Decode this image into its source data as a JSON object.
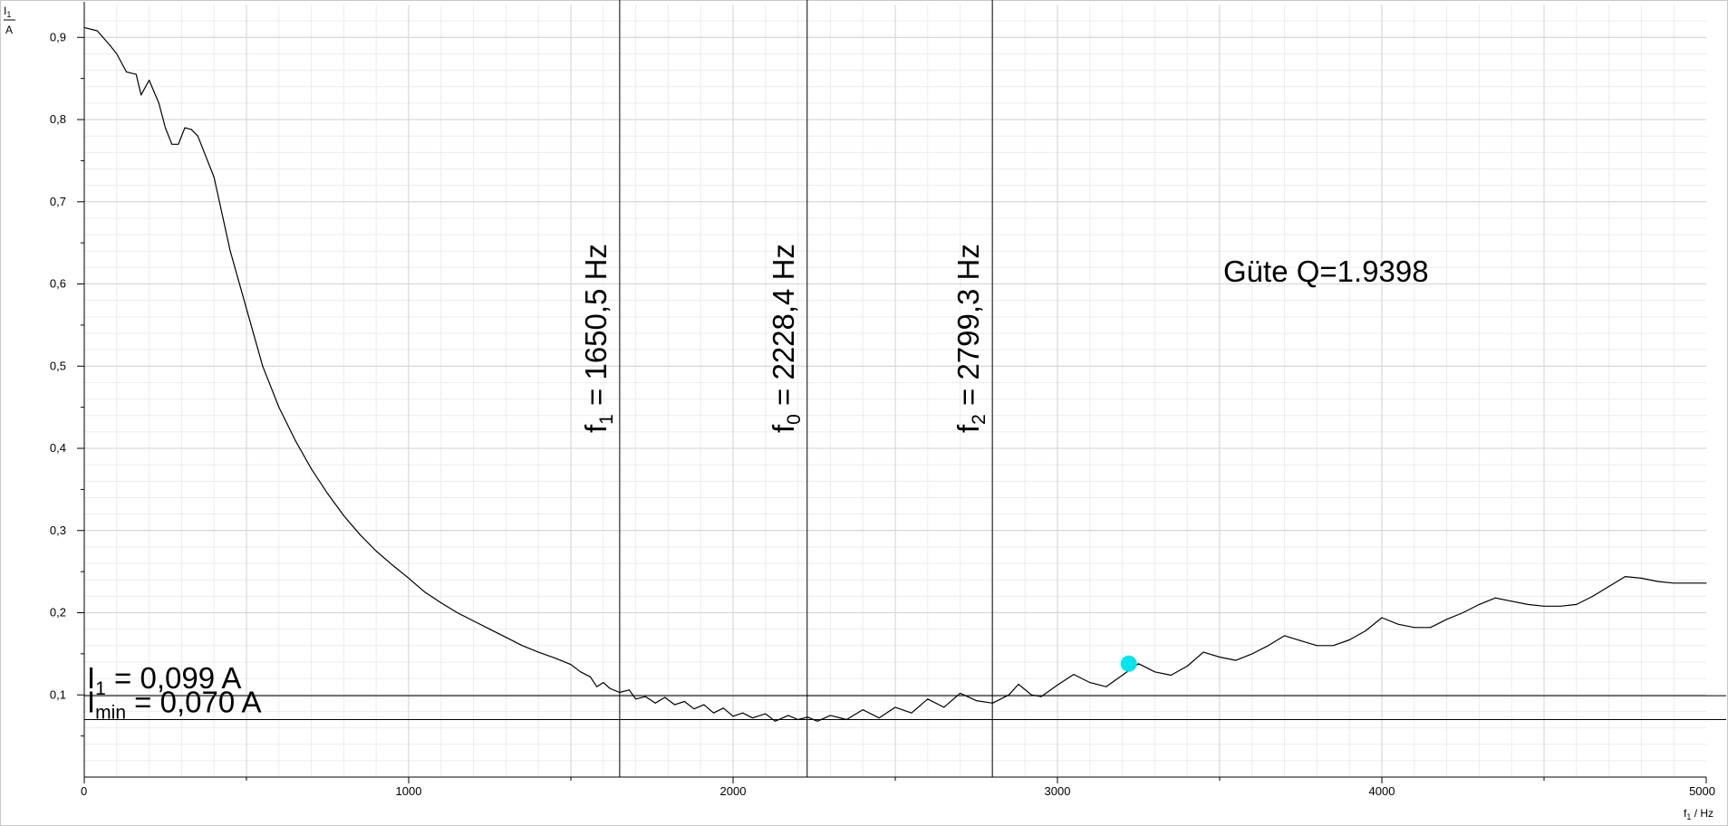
{
  "chart_data": {
    "type": "line",
    "title": "",
    "xlabel": "f",
    "xlabel_sub": "1",
    "xlabel_unit": " / Hz",
    "ylabel": "I",
    "ylabel_sub": "1",
    "ylabel_unit": "A",
    "xlim": [
      0,
      5000
    ],
    "ylim": [
      0.0,
      0.94
    ],
    "grid": true,
    "x_ticks": [
      0,
      1000,
      2000,
      3000,
      4000,
      5000
    ],
    "x_tick_labels": [
      "0",
      "1000",
      "2000",
      "3000",
      "4000",
      "5000"
    ],
    "y_ticks": [
      0.1,
      0.2,
      0.3,
      0.4,
      0.5,
      0.6,
      0.7,
      0.8,
      0.9
    ],
    "y_tick_labels": [
      "0,1",
      "0,2",
      "0,3",
      "0,4",
      "0,5",
      "0,6",
      "0,7",
      "0,8",
      "0,9"
    ],
    "series": [
      {
        "color": "#000000",
        "points": [
          [
            0,
            0.912
          ],
          [
            40,
            0.908
          ],
          [
            80,
            0.89
          ],
          [
            100,
            0.88
          ],
          [
            130,
            0.858
          ],
          [
            160,
            0.855
          ],
          [
            175,
            0.83
          ],
          [
            200,
            0.848
          ],
          [
            230,
            0.82
          ],
          [
            250,
            0.79
          ],
          [
            270,
            0.77
          ],
          [
            290,
            0.77
          ],
          [
            310,
            0.79
          ],
          [
            330,
            0.788
          ],
          [
            350,
            0.78
          ],
          [
            400,
            0.73
          ],
          [
            450,
            0.64
          ],
          [
            500,
            0.57
          ],
          [
            550,
            0.5
          ],
          [
            600,
            0.45
          ],
          [
            650,
            0.41
          ],
          [
            700,
            0.375
          ],
          [
            750,
            0.345
          ],
          [
            800,
            0.318
          ],
          [
            850,
            0.295
          ],
          [
            900,
            0.275
          ],
          [
            950,
            0.258
          ],
          [
            1000,
            0.242
          ],
          [
            1050,
            0.225
          ],
          [
            1100,
            0.212
          ],
          [
            1150,
            0.2
          ],
          [
            1200,
            0.19
          ],
          [
            1250,
            0.18
          ],
          [
            1300,
            0.17
          ],
          [
            1350,
            0.16
          ],
          [
            1400,
            0.152
          ],
          [
            1450,
            0.145
          ],
          [
            1500,
            0.137
          ],
          [
            1530,
            0.128
          ],
          [
            1560,
            0.122
          ],
          [
            1580,
            0.11
          ],
          [
            1600,
            0.115
          ],
          [
            1620,
            0.108
          ],
          [
            1650,
            0.103
          ],
          [
            1680,
            0.106
          ],
          [
            1700,
            0.095
          ],
          [
            1730,
            0.098
          ],
          [
            1760,
            0.09
          ],
          [
            1790,
            0.097
          ],
          [
            1820,
            0.088
          ],
          [
            1850,
            0.092
          ],
          [
            1880,
            0.083
          ],
          [
            1910,
            0.088
          ],
          [
            1940,
            0.078
          ],
          [
            1970,
            0.084
          ],
          [
            2000,
            0.074
          ],
          [
            2030,
            0.078
          ],
          [
            2060,
            0.072
          ],
          [
            2100,
            0.077
          ],
          [
            2130,
            0.068
          ],
          [
            2170,
            0.075
          ],
          [
            2200,
            0.07
          ],
          [
            2230,
            0.073
          ],
          [
            2260,
            0.068
          ],
          [
            2300,
            0.075
          ],
          [
            2350,
            0.07
          ],
          [
            2400,
            0.082
          ],
          [
            2450,
            0.072
          ],
          [
            2500,
            0.085
          ],
          [
            2550,
            0.078
          ],
          [
            2600,
            0.095
          ],
          [
            2650,
            0.085
          ],
          [
            2700,
            0.102
          ],
          [
            2750,
            0.093
          ],
          [
            2800,
            0.09
          ],
          [
            2850,
            0.1
          ],
          [
            2880,
            0.113
          ],
          [
            2920,
            0.1
          ],
          [
            2950,
            0.098
          ],
          [
            3000,
            0.112
          ],
          [
            3050,
            0.125
          ],
          [
            3100,
            0.115
          ],
          [
            3150,
            0.11
          ],
          [
            3200,
            0.124
          ],
          [
            3250,
            0.138
          ],
          [
            3300,
            0.128
          ],
          [
            3350,
            0.124
          ],
          [
            3400,
            0.135
          ],
          [
            3450,
            0.152
          ],
          [
            3500,
            0.146
          ],
          [
            3550,
            0.142
          ],
          [
            3600,
            0.15
          ],
          [
            3650,
            0.16
          ],
          [
            3700,
            0.172
          ],
          [
            3750,
            0.166
          ],
          [
            3800,
            0.16
          ],
          [
            3850,
            0.16
          ],
          [
            3900,
            0.167
          ],
          [
            3950,
            0.178
          ],
          [
            4000,
            0.194
          ],
          [
            4050,
            0.186
          ],
          [
            4100,
            0.182
          ],
          [
            4150,
            0.182
          ],
          [
            4200,
            0.192
          ],
          [
            4250,
            0.2
          ],
          [
            4300,
            0.21
          ],
          [
            4350,
            0.218
          ],
          [
            4400,
            0.214
          ],
          [
            4450,
            0.21
          ],
          [
            4500,
            0.208
          ],
          [
            4550,
            0.208
          ],
          [
            4600,
            0.21
          ],
          [
            4650,
            0.22
          ],
          [
            4700,
            0.232
          ],
          [
            4750,
            0.244
          ],
          [
            4800,
            0.242
          ],
          [
            4850,
            0.238
          ],
          [
            4900,
            0.236
          ],
          [
            4950,
            0.236
          ],
          [
            5000,
            0.236
          ]
        ]
      }
    ],
    "marker": {
      "x": 3220,
      "y": 0.138,
      "color": "#00e5ee"
    },
    "vlines": [
      {
        "x": 1650.5,
        "name": "f",
        "sub": "1",
        "value_text": " =  1650,5 Hz"
      },
      {
        "x": 2228.4,
        "name": "f",
        "sub": "0",
        "value_text": " =  2228,4 Hz"
      },
      {
        "x": 2799.3,
        "name": "f",
        "sub": "2",
        "value_text": " =  2799,3 Hz"
      }
    ],
    "hlines": [
      {
        "y": 0.099,
        "name": "I",
        "sub": "1",
        "value_text": " =  0,099 A"
      },
      {
        "y": 0.07,
        "name": "I",
        "sub": "min",
        "value_text": " =  0,070 A"
      }
    ],
    "annotation": "Güte Q=1.9398"
  }
}
